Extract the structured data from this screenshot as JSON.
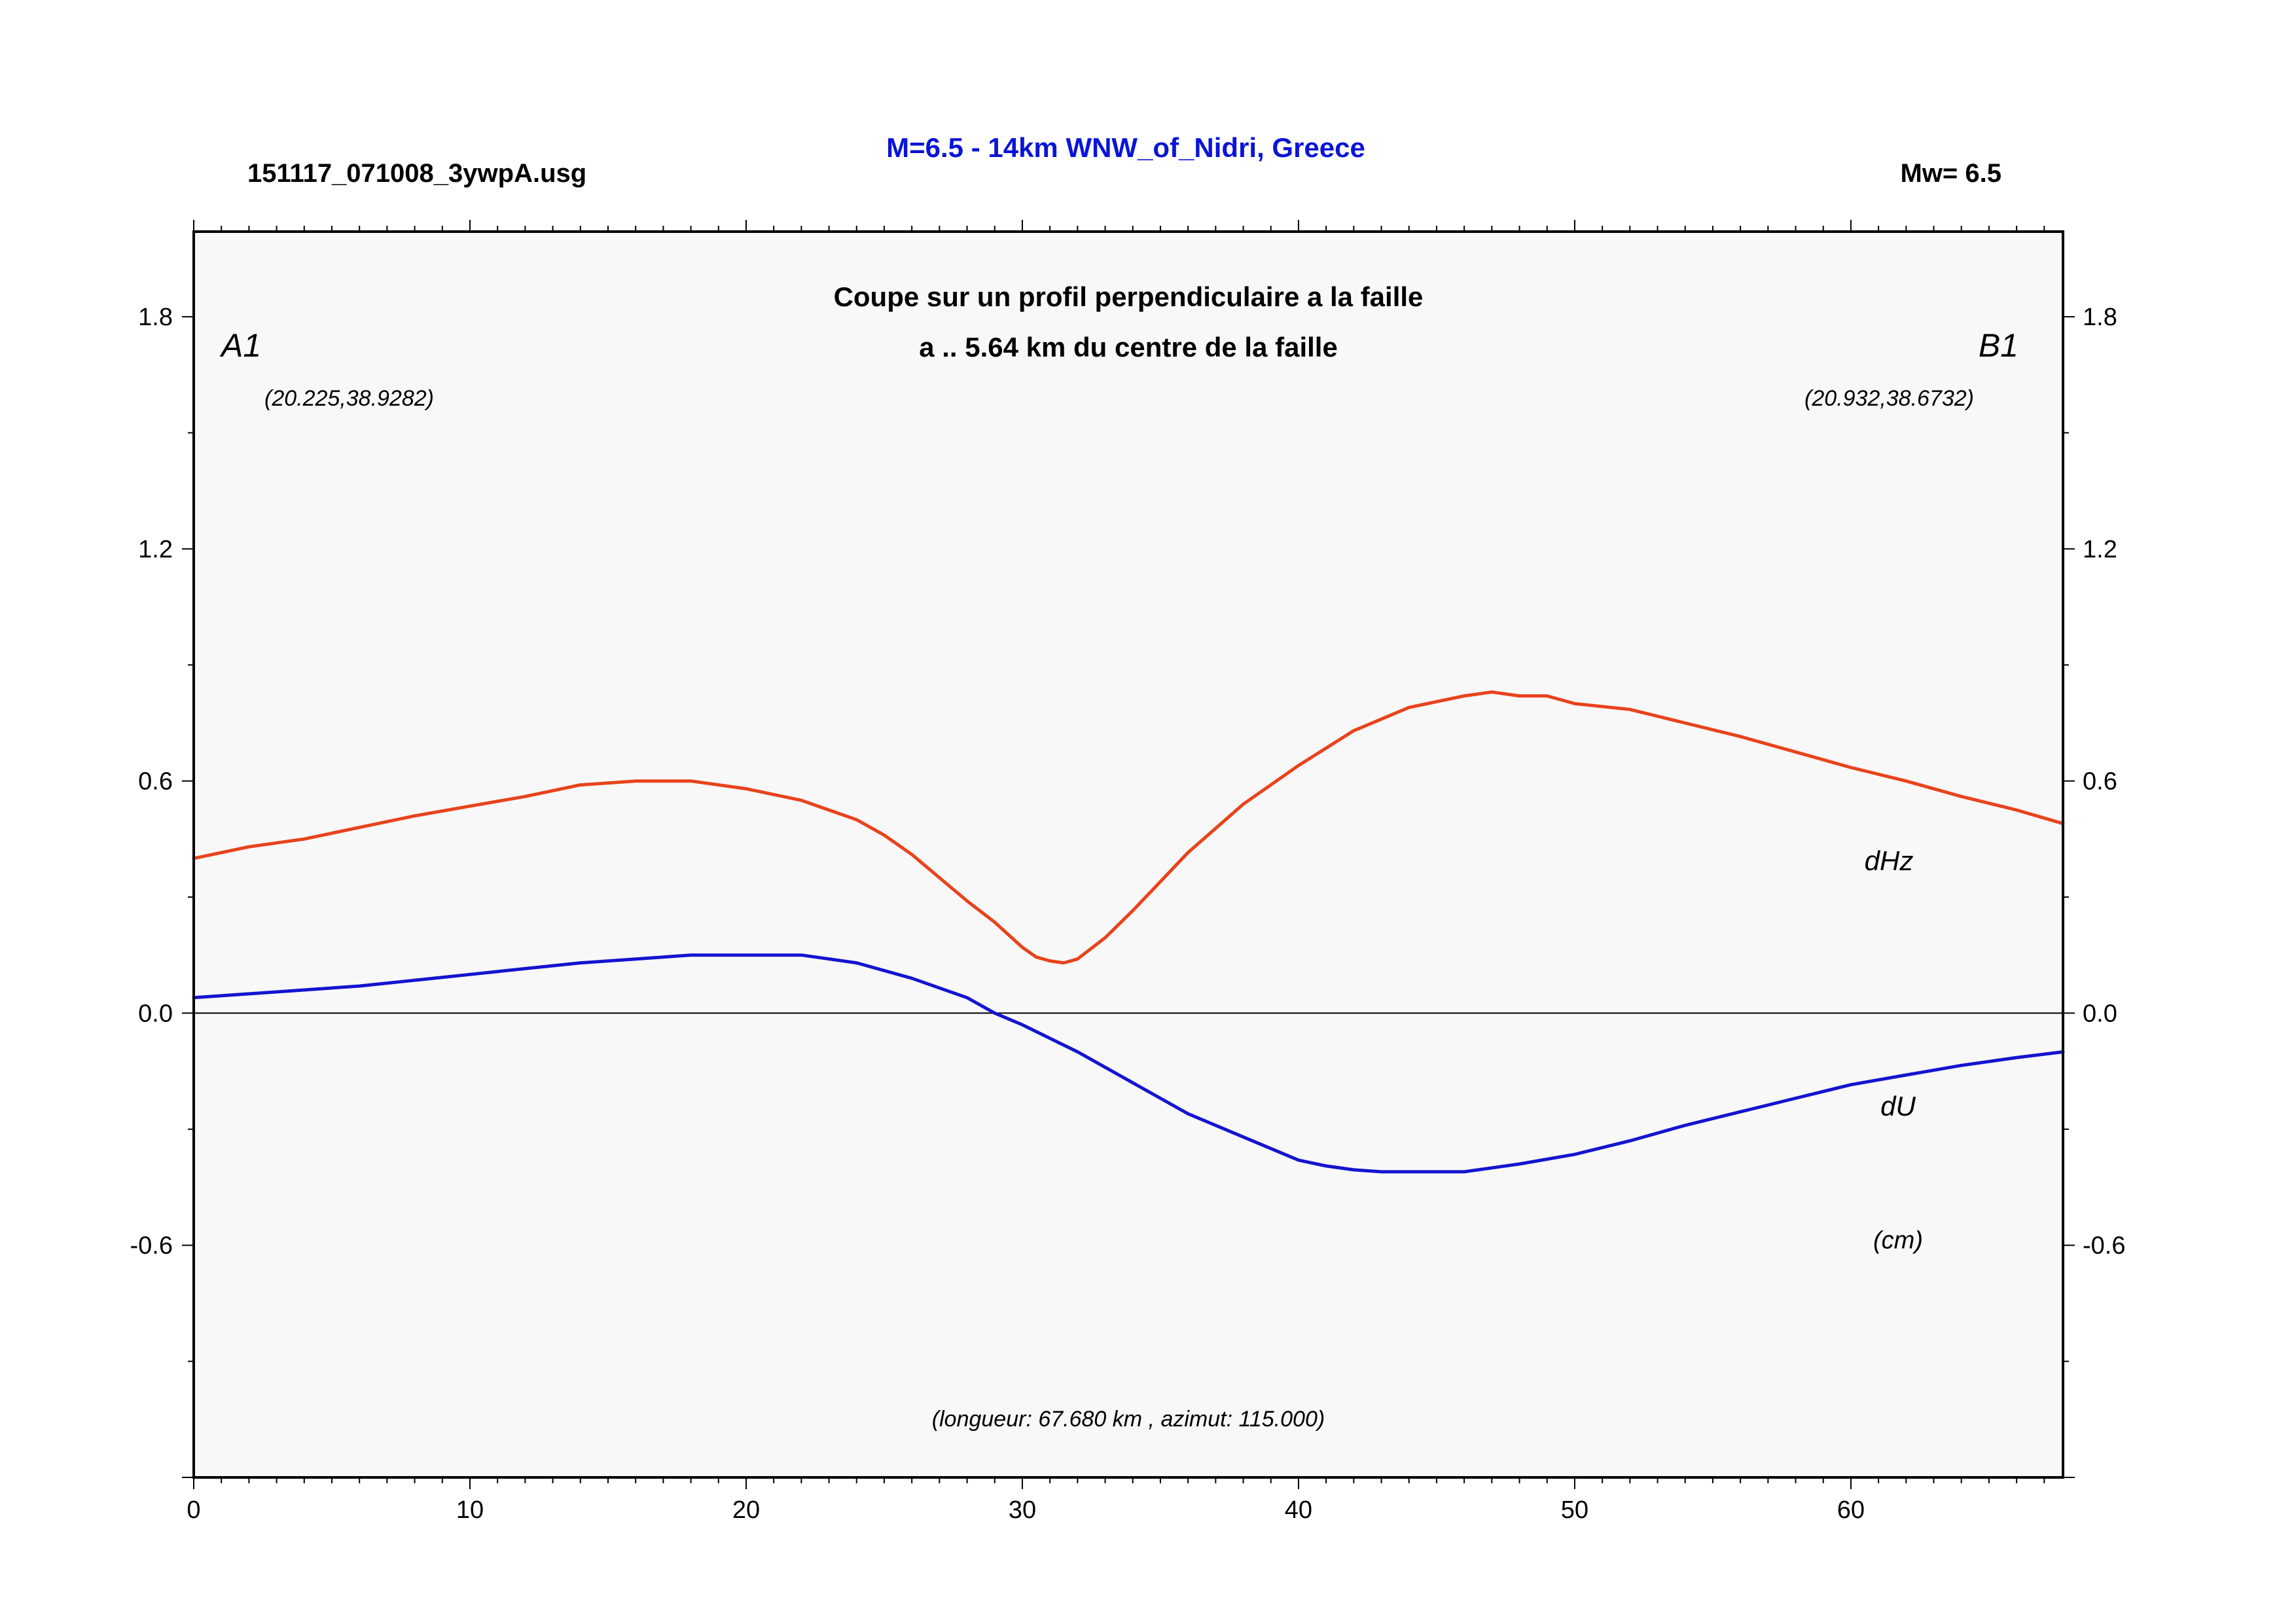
{
  "header": {
    "filename": "151117_071008_3ywpA.usg",
    "title": "M=6.5 - 14km WNW_of_Nidri, Greece",
    "magnitude": "Mw= 6.5"
  },
  "plot": {
    "heading_line1": "Coupe sur un profil perpendiculaire a la faille",
    "heading_line2": "a .. 5.64 km du centre de la faille",
    "endpoint_a": "A1",
    "endpoint_b": "B1",
    "coord_a": "(20.225,38.9282)",
    "coord_b": "(20.932,38.6732)",
    "profile_info": "(longueur: 67.680 km , azimut: 115.000)",
    "unit": "(cm)"
  },
  "colors": {
    "dHz": "#e8431c",
    "dU": "#1414d0",
    "title": "#0a14d8",
    "plot_bg": "#f8f8f8"
  },
  "chart_data": {
    "type": "line",
    "title": "Coupe sur un profil perpendiculaire a la faille",
    "xlabel": "",
    "ylabel": "",
    "xlim": [
      0,
      67.68
    ],
    "ylim": [
      -1.2,
      2.02
    ],
    "x_ticks": [
      "0",
      "10",
      "20",
      "30",
      "40",
      "50",
      "60"
    ],
    "y_ticks": [
      "-0.6",
      "0.0",
      "0.6",
      "1.2",
      "1.8"
    ],
    "grid": false,
    "series": [
      {
        "name": "dHz",
        "x": [
          0,
          2,
          4,
          6,
          8,
          10,
          12,
          14,
          16,
          18,
          20,
          22,
          24,
          25,
          26,
          27,
          28,
          29,
          30,
          30.5,
          31,
          31.5,
          32,
          33,
          34,
          35,
          36,
          38,
          40,
          42,
          44,
          46,
          47,
          48,
          49,
          50,
          52,
          54,
          56,
          58,
          60,
          62,
          64,
          66,
          67.68
        ],
        "y": [
          0.4,
          0.43,
          0.45,
          0.48,
          0.51,
          0.535,
          0.56,
          0.59,
          0.6,
          0.6,
          0.58,
          0.55,
          0.5,
          0.46,
          0.41,
          0.35,
          0.29,
          0.235,
          0.17,
          0.145,
          0.135,
          0.13,
          0.14,
          0.195,
          0.265,
          0.34,
          0.415,
          0.54,
          0.64,
          0.73,
          0.79,
          0.82,
          0.83,
          0.82,
          0.82,
          0.8,
          0.785,
          0.75,
          0.715,
          0.675,
          0.635,
          0.6,
          0.56,
          0.525,
          0.49
        ]
      },
      {
        "name": "dU",
        "x": [
          0,
          2,
          4,
          6,
          8,
          10,
          12,
          14,
          16,
          18,
          20,
          22,
          24,
          26,
          28,
          29,
          30,
          32,
          34,
          36,
          38,
          40,
          41,
          42,
          43,
          44,
          46,
          48,
          50,
          52,
          54,
          56,
          58,
          60,
          62,
          64,
          66,
          67.68
        ],
        "y": [
          0.04,
          0.05,
          0.06,
          0.07,
          0.085,
          0.1,
          0.115,
          0.13,
          0.14,
          0.15,
          0.15,
          0.15,
          0.13,
          0.09,
          0.04,
          0.0,
          -0.03,
          -0.1,
          -0.18,
          -0.26,
          -0.32,
          -0.38,
          -0.395,
          -0.405,
          -0.41,
          -0.41,
          -0.41,
          -0.39,
          -0.365,
          -0.33,
          -0.29,
          -0.255,
          -0.22,
          -0.185,
          -0.16,
          -0.135,
          -0.115,
          -0.1
        ]
      }
    ]
  }
}
